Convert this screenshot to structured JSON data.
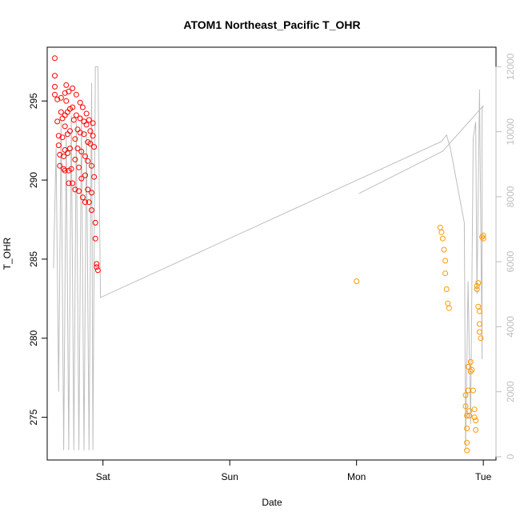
{
  "chart_data": {
    "type": "scatter",
    "title": "ATOM1 Northeast_Pacific T_OHR",
    "xlabel": "Date",
    "ylabel": "T_OHR",
    "x_axis": {
      "range_days": [
        -0.44,
        3.1
      ],
      "ticks": [
        {
          "label": "Sat",
          "value": 0
        },
        {
          "label": "Sun",
          "value": 1
        },
        {
          "label": "Mon",
          "value": 2
        },
        {
          "label": "Tue",
          "value": 3
        }
      ]
    },
    "y_axis_left": {
      "ylim": [
        272.3,
        298.4
      ],
      "ticks": [
        275,
        280,
        285,
        290,
        295
      ]
    },
    "y_axis_right": {
      "ylim": [
        -100,
        12600
      ],
      "ticks": [
        0,
        2000,
        4000,
        6000,
        8000,
        10000,
        12000
      ],
      "color": "#bebebe"
    },
    "grid": false,
    "colors": {
      "series_a": "#ff0000",
      "series_b": "#ff9900",
      "line": "#bebebe"
    },
    "series": [
      {
        "marker": "circle-open",
        "color": "#ff0000",
        "points": [
          [
            -0.38,
            297.7
          ],
          [
            -0.38,
            296.6
          ],
          [
            -0.38,
            295.9
          ],
          [
            -0.38,
            295.4
          ],
          [
            -0.36,
            295.1
          ],
          [
            -0.36,
            293.7
          ],
          [
            -0.35,
            292.8
          ],
          [
            -0.35,
            292.2
          ],
          [
            -0.34,
            291.6
          ],
          [
            -0.34,
            290.9
          ],
          [
            -0.33,
            295.2
          ],
          [
            -0.33,
            294.3
          ],
          [
            -0.32,
            293.9
          ],
          [
            -0.32,
            292.7
          ],
          [
            -0.31,
            291.5
          ],
          [
            -0.31,
            290.7
          ],
          [
            -0.3,
            295.5
          ],
          [
            -0.3,
            294.1
          ],
          [
            -0.3,
            293.4
          ],
          [
            -0.3,
            291.9
          ],
          [
            -0.3,
            290.6
          ],
          [
            -0.29,
            296.0
          ],
          [
            -0.29,
            295.0
          ],
          [
            -0.28,
            294.3
          ],
          [
            -0.28,
            292.9
          ],
          [
            -0.28,
            291.7
          ],
          [
            -0.27,
            290.6
          ],
          [
            -0.27,
            289.8
          ],
          [
            -0.27,
            295.6
          ],
          [
            -0.26,
            294.5
          ],
          [
            -0.26,
            293.1
          ],
          [
            -0.26,
            292.0
          ],
          [
            -0.25,
            290.7
          ],
          [
            -0.24,
            289.8
          ],
          [
            -0.24,
            295.8
          ],
          [
            -0.24,
            294.6
          ],
          [
            -0.23,
            293.8
          ],
          [
            -0.22,
            292.6
          ],
          [
            -0.22,
            291.3
          ],
          [
            -0.22,
            289.4
          ],
          [
            -0.21,
            295.4
          ],
          [
            -0.21,
            294.1
          ],
          [
            -0.2,
            293.2
          ],
          [
            -0.2,
            292.0
          ],
          [
            -0.19,
            290.8
          ],
          [
            -0.19,
            289.3
          ],
          [
            -0.18,
            294.9
          ],
          [
            -0.18,
            293.9
          ],
          [
            -0.18,
            293.0
          ],
          [
            -0.17,
            291.8
          ],
          [
            -0.17,
            290.1
          ],
          [
            -0.16,
            288.9
          ],
          [
            -0.16,
            294.6
          ],
          [
            -0.15,
            293.7
          ],
          [
            -0.15,
            292.9
          ],
          [
            -0.14,
            291.5
          ],
          [
            -0.14,
            290.3
          ],
          [
            -0.14,
            288.6
          ],
          [
            -0.13,
            294.2
          ],
          [
            -0.13,
            293.5
          ],
          [
            -0.12,
            292.4
          ],
          [
            -0.12,
            291.2
          ],
          [
            -0.12,
            289.4
          ],
          [
            -0.11,
            288.6
          ],
          [
            -0.11,
            293.8
          ],
          [
            -0.1,
            293.1
          ],
          [
            -0.1,
            292.3
          ],
          [
            -0.09,
            290.9
          ],
          [
            -0.09,
            289.2
          ],
          [
            -0.09,
            288.1
          ],
          [
            -0.08,
            293.6
          ],
          [
            -0.08,
            292.8
          ],
          [
            -0.07,
            292.1
          ],
          [
            -0.07,
            290.2
          ],
          [
            -0.06,
            287.3
          ],
          [
            -0.06,
            286.3
          ],
          [
            -0.05,
            284.7
          ],
          [
            -0.05,
            284.5
          ],
          [
            -0.04,
            284.3
          ]
        ]
      },
      {
        "marker": "circle-open",
        "color": "#ff9900",
        "points": [
          [
            2.0,
            283.6
          ],
          [
            2.66,
            287.0
          ],
          [
            2.67,
            286.7
          ],
          [
            2.68,
            286.3
          ],
          [
            2.69,
            285.6
          ],
          [
            2.7,
            284.9
          ],
          [
            2.7,
            284.1
          ],
          [
            2.71,
            283.1
          ],
          [
            2.72,
            282.2
          ],
          [
            2.73,
            281.9
          ],
          [
            2.86,
            276.4
          ],
          [
            2.86,
            275.7
          ],
          [
            2.87,
            275.1
          ],
          [
            2.87,
            274.3
          ],
          [
            2.87,
            273.4
          ],
          [
            2.87,
            272.9
          ],
          [
            2.88,
            278.2
          ],
          [
            2.88,
            276.7
          ],
          [
            2.89,
            275.4
          ],
          [
            2.89,
            275.1
          ],
          [
            2.9,
            278.5
          ],
          [
            2.9,
            277.9
          ],
          [
            2.91,
            278.0
          ],
          [
            2.92,
            276.7
          ],
          [
            2.93,
            275.5
          ],
          [
            2.93,
            275.0
          ],
          [
            2.94,
            274.8
          ],
          [
            2.94,
            274.2
          ],
          [
            2.95,
            283.1
          ],
          [
            2.95,
            283.3
          ],
          [
            2.96,
            283.5
          ],
          [
            2.96,
            282.0
          ],
          [
            2.97,
            281.7
          ],
          [
            2.97,
            280.9
          ],
          [
            2.97,
            280.4
          ],
          [
            2.98,
            280.0
          ],
          [
            2.99,
            286.4
          ],
          [
            3.0,
            286.5
          ],
          [
            3.0,
            286.3
          ]
        ]
      },
      {
        "marker": "line",
        "axis": "right",
        "color": "#bebebe",
        "points": [
          [
            -0.39,
            5800
          ],
          [
            -0.37,
            9500
          ],
          [
            -0.35,
            2000
          ],
          [
            -0.33,
            10300
          ],
          [
            -0.31,
            200
          ],
          [
            -0.29,
            10000
          ],
          [
            -0.27,
            200
          ],
          [
            -0.25,
            10500
          ],
          [
            -0.23,
            200
          ],
          [
            -0.21,
            10300
          ],
          [
            -0.19,
            200
          ],
          [
            -0.17,
            10500
          ],
          [
            -0.15,
            200
          ],
          [
            -0.13,
            10000
          ],
          [
            -0.11,
            200
          ],
          [
            -0.09,
            11500
          ],
          [
            -0.08,
            200
          ],
          [
            -0.06,
            12000
          ],
          [
            -0.04,
            12000
          ],
          [
            -0.02,
            4900
          ],
          [
            2.67,
            9700
          ],
          [
            2.71,
            9900
          ],
          [
            2.74,
            9500
          ],
          [
            2.85,
            7200
          ],
          [
            2.86,
            200
          ],
          [
            2.88,
            5400
          ],
          [
            2.9,
            1000
          ],
          [
            2.92,
            9800
          ],
          [
            2.94,
            10300
          ],
          [
            2.95,
            5000
          ],
          [
            2.97,
            11300
          ],
          [
            2.99,
            3000
          ],
          [
            2.99,
            10700
          ],
          [
            3.0,
            10800
          ],
          [
            2.68,
            9400
          ],
          [
            2.02,
            8100
          ]
        ]
      }
    ]
  }
}
